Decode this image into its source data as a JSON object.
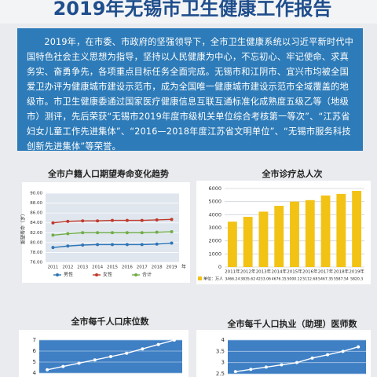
{
  "title": "2019年无锡市卫生健康工作报告",
  "intro": "2019年，在市委、市政府的坚强领导下，全市卫生健康系统以习近平新时代中国特色社会主义思想为指导，坚持以人民健康为中心，不忘初心、牢记使命、求真务实、奋勇争先，各项重点目标任务全面完成。无锡市和江阴市、宜兴市均被全国爱卫办评为健康城市建设示范市，成为全国唯一健康城市建设示范市全域覆盖的地级市。市卫生健康委通过国家医疗健康信息互联互通标准化成熟度五级乙等（地级市）测评，先后荣获“无锡市2019年度市级机关单位综合考核第一等次”、“江苏省妇女儿童工作先进集体”、“2016—2018年度江苏省文明单位”、“无锡市服务科技创新先进集体”等荣誉。",
  "chart_data": [
    {
      "type": "line",
      "title": "全市户籍人口期望寿命变化趋势",
      "y_label": "期望寿命（岁）",
      "x_unit": "年",
      "categories": [
        "2011",
        "2012",
        "2013",
        "2014",
        "2015",
        "2016",
        "2017",
        "2018",
        "2019"
      ],
      "series": [
        {
          "name": "男性",
          "color": "#2e75b6",
          "values": [
            79.0,
            79.3,
            79.5,
            79.6,
            79.6,
            79.6,
            79.6,
            79.7,
            79.9
          ]
        },
        {
          "name": "女性",
          "color": "#c0392b",
          "values": [
            84.0,
            84.3,
            84.4,
            84.4,
            84.5,
            84.5,
            84.5,
            84.6,
            84.7
          ]
        },
        {
          "name": "合计",
          "color": "#70ad47",
          "values": [
            81.5,
            81.8,
            82.0,
            82.0,
            82.0,
            82.0,
            82.0,
            82.1,
            82.2
          ]
        }
      ],
      "ylim": [
        76,
        90
      ],
      "yticks": [
        {
          "value": 76,
          "label": "76.00"
        },
        {
          "value": 78,
          "label": "78.00"
        },
        {
          "value": 80,
          "label": "80.00"
        },
        {
          "value": 82,
          "label": "82.00"
        },
        {
          "value": 84,
          "label": "84.00"
        },
        {
          "value": 86,
          "label": "86.00"
        },
        {
          "value": 88,
          "label": "88.00"
        },
        {
          "value": 90,
          "label": "90.00"
        }
      ],
      "grid": true
    },
    {
      "type": "bar",
      "title": "全市诊疗总人次",
      "categories": [
        "2011年",
        "2012年",
        "2013年",
        "2014年",
        "2015年",
        "2016年",
        "2017年",
        "2018年",
        "2019年"
      ],
      "series": [
        {
          "name": "单位：万人",
          "color": "#f2c315",
          "values": [
            3466.24,
            3835.62,
            4233.06,
            4676.15,
            5000.12,
            5112.68,
            5467.35,
            5587.54,
            5820.3
          ]
        }
      ],
      "ylim": [
        0,
        6000
      ],
      "yticks": [
        0,
        1000,
        2000,
        3000,
        4000,
        5000,
        6000
      ],
      "grid": true
    },
    {
      "type": "line",
      "title": "全市每千人口床位数",
      "categories": [
        null,
        null,
        null,
        null,
        null,
        null,
        null,
        null,
        null
      ],
      "series": [
        {
          "name": null,
          "color": "#ffffff",
          "values": [
            4.3,
            4.6,
            4.9,
            5.2,
            5.5,
            5.8,
            6.2,
            6.6,
            7.0
          ]
        }
      ],
      "ylim": [
        4,
        7
      ],
      "yticks": [
        4,
        5,
        6,
        7
      ],
      "grid": true
    },
    {
      "type": "line",
      "title": "全市每千人口执业（助理）医师数",
      "categories": [
        null,
        null,
        null,
        null,
        null,
        null,
        null,
        null,
        null
      ],
      "series": [
        {
          "name": null,
          "color": "#ffffff",
          "values": [
            2.6,
            2.7,
            2.8,
            2.9,
            3.0,
            3.2,
            3.35,
            3.5,
            3.7
          ]
        }
      ],
      "ylim": [
        2.5,
        4
      ],
      "yticks": [
        2.5,
        3,
        3.5,
        4
      ],
      "grid": true
    }
  ]
}
